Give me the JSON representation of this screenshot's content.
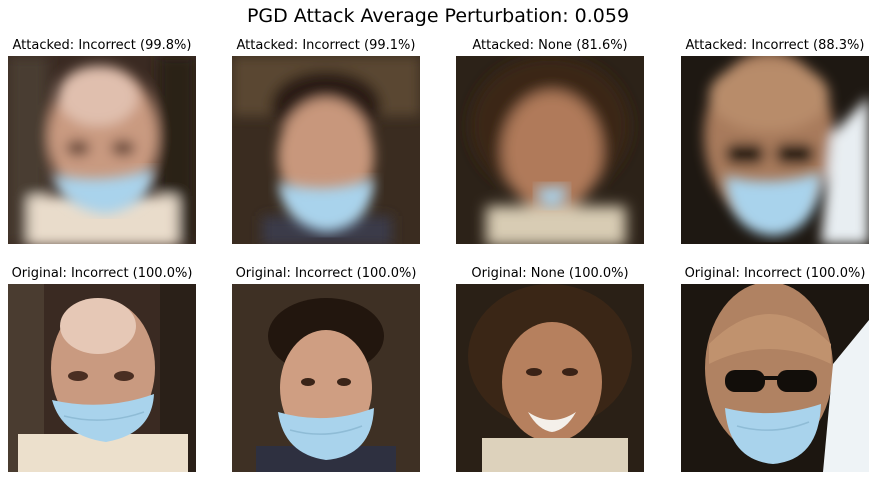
{
  "figure": {
    "title": "PGD Attack Average Perturbation: 0.059"
  },
  "attacked_row": [
    {
      "caption": "Attacked: Incorrect (99.8%)"
    },
    {
      "caption": "Attacked: Incorrect (99.1%)"
    },
    {
      "caption": "Attacked: None (81.6%)"
    },
    {
      "caption": "Attacked: Incorrect (88.3%)"
    }
  ],
  "original_row": [
    {
      "caption": "Original: Incorrect (100.0%)"
    },
    {
      "caption": "Original: Incorrect (100.0%)"
    },
    {
      "caption": "Original: None (100.0%)"
    },
    {
      "caption": "Original: Incorrect (100.0%)"
    }
  ],
  "colors": {
    "mask": "#a9d3ec",
    "background": "#ffffff"
  }
}
